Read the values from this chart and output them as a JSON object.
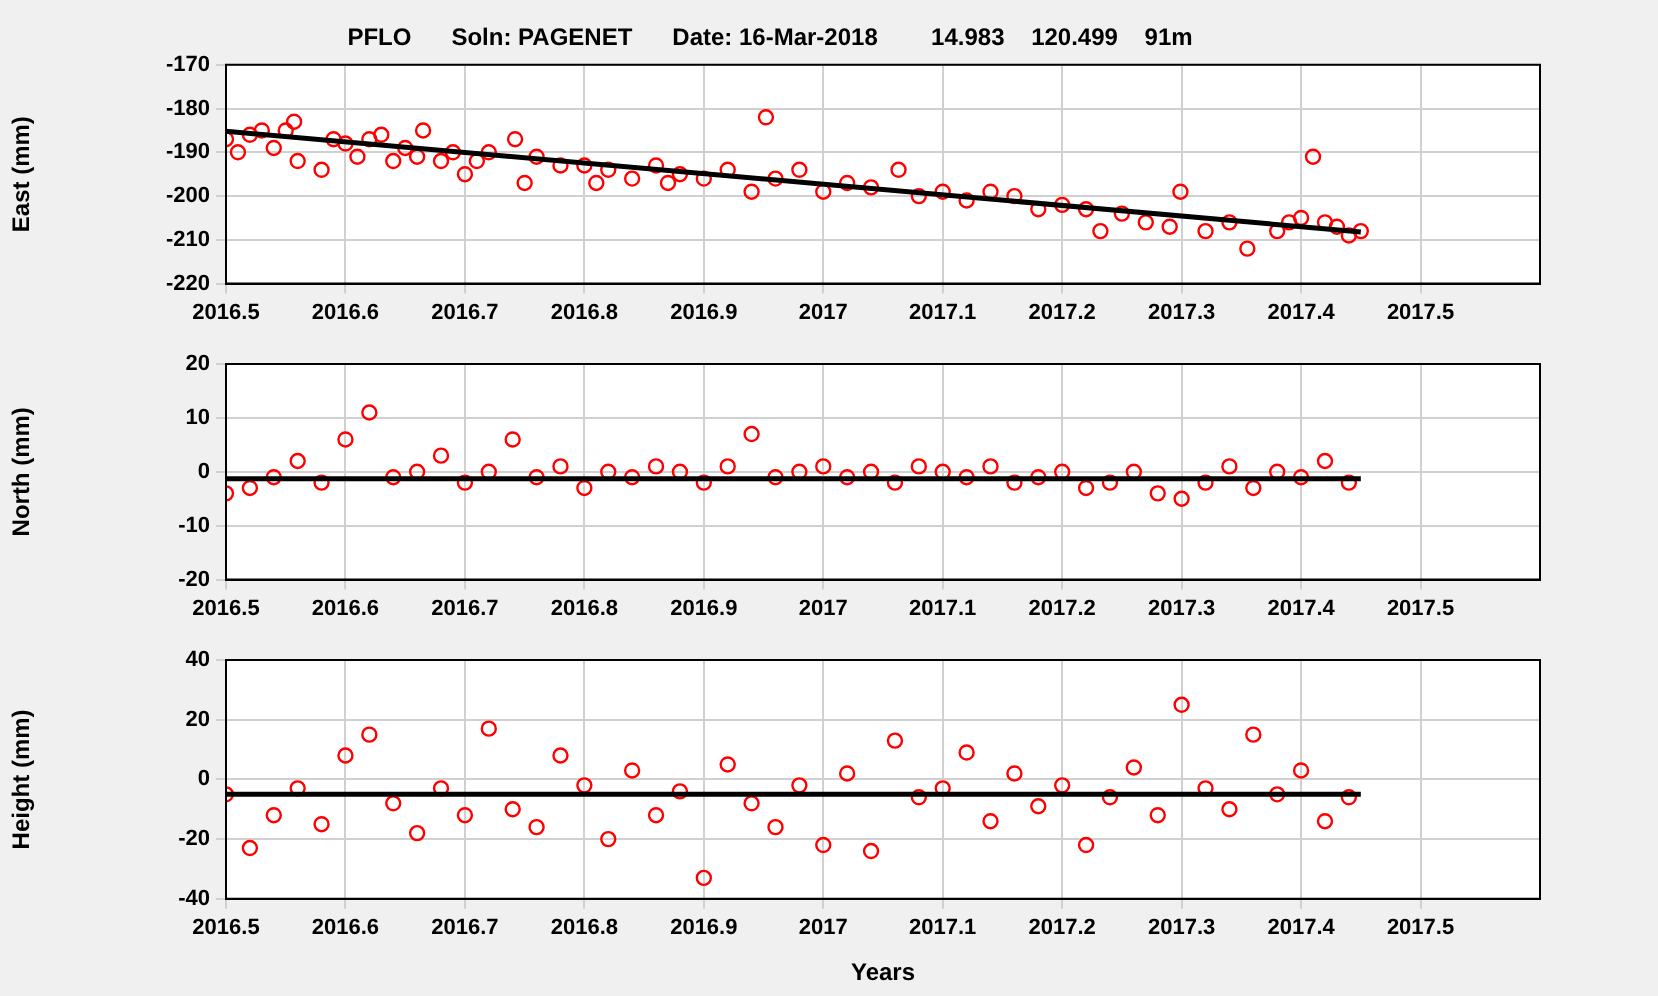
{
  "chart_data": [
    {
      "type": "scatter",
      "title": "PFLO      Soln: PAGENET      Date: 16-Mar-2018        14.983    120.499    91m",
      "ylabel": "East (mm)",
      "xlim": [
        2016.5,
        2017.6
      ],
      "xticks": [
        2016.5,
        2016.6,
        2016.7,
        2016.8,
        2016.9,
        2017,
        2017.1,
        2017.2,
        2017.3,
        2017.4,
        2017.5
      ],
      "ylim": [
        -220,
        -170
      ],
      "yticks": [
        -220,
        -210,
        -200,
        -190,
        -180,
        -170
      ],
      "grid": true,
      "series": [
        {
          "color": "#ff0000",
          "marker": "circle",
          "x": [
            2016.5,
            2016.51,
            2016.52,
            2016.53,
            2016.54,
            2016.55,
            2016.557,
            2016.56,
            2016.58,
            2016.59,
            2016.6,
            2016.61,
            2016.62,
            2016.63,
            2016.64,
            2016.65,
            2016.66,
            2016.665,
            2016.68,
            2016.69,
            2016.7,
            2016.71,
            2016.72,
            2016.742,
            2016.75,
            2016.76,
            2016.78,
            2016.8,
            2016.81,
            2016.82,
            2016.84,
            2016.86,
            2016.87,
            2016.88,
            2016.9,
            2016.92,
            2016.94,
            2016.952,
            2016.96,
            2016.98,
            2017,
            2017.02,
            2017.04,
            2017.063,
            2017.08,
            2017.1,
            2017.12,
            2017.14,
            2017.16,
            2017.18,
            2017.2,
            2017.22,
            2017.232,
            2017.25,
            2017.27,
            2017.29,
            2017.299,
            2017.32,
            2017.34,
            2017.355,
            2017.38,
            2017.39,
            2017.4,
            2017.41,
            2017.42,
            2017.43,
            2017.44,
            2017.45
          ],
          "values": [
            -187,
            -190,
            -186,
            -185,
            -189,
            -185,
            -183,
            -192,
            -194,
            -187,
            -188,
            -191,
            -187,
            -186,
            -192,
            -189,
            -191,
            -185,
            -192,
            -190,
            -195,
            -192,
            -190,
            -187,
            -197,
            -191,
            -193,
            -193,
            -197,
            -194,
            -196,
            -193,
            -197,
            -195,
            -196,
            -194,
            -199,
            -182,
            -196,
            -194,
            -199,
            -197,
            -198,
            -194,
            -200,
            -199,
            -201,
            -199,
            -200,
            -203,
            -202,
            -203,
            -208,
            -204,
            -206,
            -207,
            -199,
            -208,
            -206,
            -212,
            -208,
            -206,
            -205,
            -191,
            -206,
            -207,
            -209,
            -208
          ]
        },
        {
          "type": "line",
          "marker": "none",
          "color": "#000000",
          "x": [
            2016.5,
            2017.45
          ],
          "values": [
            -185.2,
            -208.2
          ]
        }
      ]
    },
    {
      "type": "scatter",
      "ylabel": "North (mm)",
      "xlim": [
        2016.5,
        2017.6
      ],
      "xticks": [
        2016.5,
        2016.6,
        2016.7,
        2016.8,
        2016.9,
        2017,
        2017.1,
        2017.2,
        2017.3,
        2017.4,
        2017.5
      ],
      "ylim": [
        -20,
        20
      ],
      "yticks": [
        -20,
        -10,
        0,
        10,
        20
      ],
      "grid": true,
      "series": [
        {
          "color": "#ff0000",
          "x": [
            2016.5,
            2016.52,
            2016.54,
            2016.56,
            2016.58,
            2016.6,
            2016.62,
            2016.64,
            2016.66,
            2016.68,
            2016.7,
            2016.72,
            2016.74,
            2016.76,
            2016.78,
            2016.8,
            2016.82,
            2016.84,
            2016.86,
            2016.88,
            2016.9,
            2016.92,
            2016.94,
            2016.96,
            2016.98,
            2017,
            2017.02,
            2017.04,
            2017.06,
            2017.08,
            2017.1,
            2017.12,
            2017.14,
            2017.16,
            2017.18,
            2017.2,
            2017.22,
            2017.24,
            2017.26,
            2017.28,
            2017.3,
            2017.32,
            2017.34,
            2017.36,
            2017.38,
            2017.4,
            2017.42,
            2017.44
          ],
          "marker": "circle",
          "values": [
            -4,
            -3,
            -1,
            2,
            -2,
            6,
            11,
            -1,
            0,
            3,
            -2,
            0,
            6,
            -1,
            1,
            -3,
            0,
            -1,
            1,
            0,
            -2,
            1,
            7,
            -1,
            0,
            1,
            -1,
            0,
            -2,
            1,
            0,
            -1,
            1,
            -2,
            -1,
            0,
            -3,
            -2,
            0,
            -4,
            -5,
            -2,
            1,
            -3,
            0,
            -1,
            2,
            -2
          ]
        },
        {
          "type": "line",
          "marker": "none",
          "color": "#000000",
          "x": [
            2016.5,
            2017.45
          ],
          "values": [
            -1.3,
            -1.3
          ]
        }
      ]
    },
    {
      "type": "scatter",
      "ylabel": "Height (mm)",
      "xlabel": "Years",
      "xlim": [
        2016.5,
        2017.6
      ],
      "xticks": [
        2016.5,
        2016.6,
        2016.7,
        2016.8,
        2016.9,
        2017,
        2017.1,
        2017.2,
        2017.3,
        2017.4,
        2017.5
      ],
      "ylim": [
        -40,
        40
      ],
      "yticks": [
        -40,
        -20,
        0,
        20,
        40
      ],
      "grid": true,
      "series": [
        {
          "color": "#ff0000",
          "x": [
            2016.5,
            2016.52,
            2016.54,
            2016.56,
            2016.58,
            2016.6,
            2016.62,
            2016.64,
            2016.66,
            2016.68,
            2016.7,
            2016.72,
            2016.74,
            2016.76,
            2016.78,
            2016.8,
            2016.82,
            2016.84,
            2016.86,
            2016.88,
            2016.9,
            2016.92,
            2016.94,
            2016.96,
            2016.98,
            2017,
            2017.02,
            2017.04,
            2017.06,
            2017.08,
            2017.1,
            2017.12,
            2017.14,
            2017.16,
            2017.18,
            2017.2,
            2017.22,
            2017.24,
            2017.26,
            2017.28,
            2017.3,
            2017.32,
            2017.34,
            2017.36,
            2017.38,
            2017.4,
            2017.42,
            2017.44
          ],
          "marker": "circle",
          "values": [
            -5,
            -23,
            -12,
            -3,
            -15,
            8,
            15,
            -8,
            -18,
            -3,
            -12,
            17,
            -10,
            -16,
            8,
            -2,
            -20,
            3,
            -12,
            -4,
            -33,
            5,
            -8,
            -16,
            -2,
            -22,
            2,
            -24,
            13,
            -6,
            -3,
            9,
            -14,
            2,
            -9,
            -2,
            -22,
            -6,
            4,
            -12,
            25,
            -3,
            -10,
            15,
            -5,
            3,
            -14,
            -6
          ]
        },
        {
          "type": "line",
          "marker": "none",
          "color": "#000000",
          "x": [
            2016.5,
            2017.45
          ],
          "values": [
            -5,
            -5
          ]
        }
      ]
    }
  ]
}
